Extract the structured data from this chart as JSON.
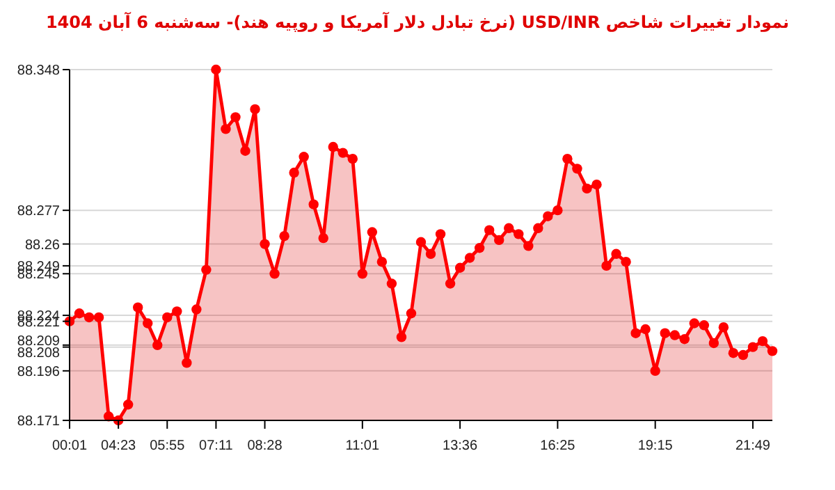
{
  "chart_data": {
    "type": "area",
    "title": "نمودار تغییرات شاخص USD/INR (نرخ تبادل دلار آمریکا و روپیه هند)- سه‌شنبه  6 آبان 1404",
    "categories": [
      "00:01",
      null,
      null,
      null,
      null,
      "04:23",
      null,
      null,
      null,
      null,
      "05:55",
      null,
      null,
      null,
      null,
      "07:11",
      null,
      null,
      null,
      null,
      "08:28",
      null,
      null,
      null,
      null,
      null,
      null,
      null,
      null,
      null,
      "11:01",
      null,
      null,
      null,
      null,
      null,
      null,
      null,
      null,
      null,
      "13:36",
      null,
      null,
      null,
      null,
      null,
      null,
      null,
      null,
      null,
      "16:25",
      null,
      null,
      null,
      null,
      null,
      null,
      null,
      null,
      null,
      "19:15",
      null,
      null,
      null,
      null,
      null,
      null,
      null,
      null,
      null,
      "21:49",
      null,
      null
    ],
    "series": [
      {
        "color": "#ff0000",
        "values": [
          88.221,
          88.225,
          88.223,
          88.223,
          88.173,
          88.171,
          88.179,
          88.228,
          88.22,
          88.209,
          88.223,
          88.226,
          88.2,
          88.227,
          88.247,
          88.348,
          88.318,
          88.324,
          88.307,
          88.328,
          88.26,
          88.245,
          88.264,
          88.296,
          88.304,
          88.28,
          88.263,
          88.309,
          88.306,
          88.303,
          88.245,
          88.266,
          88.251,
          88.24,
          88.213,
          88.225,
          88.261,
          88.255,
          88.265,
          88.24,
          88.248,
          88.253,
          88.258,
          88.267,
          88.262,
          88.268,
          88.265,
          88.259,
          88.268,
          88.274,
          88.277,
          88.303,
          88.298,
          88.288,
          88.29,
          88.249,
          88.255,
          88.251,
          88.215,
          88.217,
          88.196,
          88.215,
          88.214,
          88.212,
          88.22,
          88.219,
          88.21,
          88.218,
          88.205,
          88.204,
          88.208,
          88.211,
          88.206
        ]
      }
    ],
    "ylim": [
      88.171,
      88.348
    ],
    "yticks": [
      88.171,
      88.196,
      88.208,
      88.209,
      88.221,
      88.224,
      88.245,
      88.249,
      88.26,
      88.277,
      88.348
    ],
    "grid": "y",
    "marker": "circle",
    "line_style": "solid"
  }
}
